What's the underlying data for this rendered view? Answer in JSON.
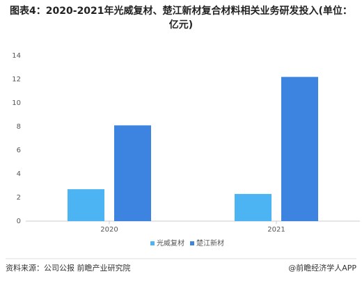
{
  "chart_data": {
    "type": "bar",
    "title": "图表4：2020-2021年光威复材、楚江新材复合材料相关业务研发投入(单位：亿元)",
    "categories": [
      "2020",
      "2021"
    ],
    "series": [
      {
        "name": "光威复材",
        "color": "#4cb4f2",
        "values": [
          2.7,
          2.3
        ]
      },
      {
        "name": "楚江新材",
        "color": "#3d84e0",
        "values": [
          8.1,
          12.2
        ]
      }
    ],
    "ylim": [
      0,
      14
    ],
    "yticks": [
      0,
      2,
      4,
      6,
      8,
      10,
      12,
      14
    ],
    "grid": false,
    "legend": "bottom",
    "source": "资料来源：公司公报 前瞻产业研究院",
    "credit": "@前瞻经济学人APP"
  }
}
